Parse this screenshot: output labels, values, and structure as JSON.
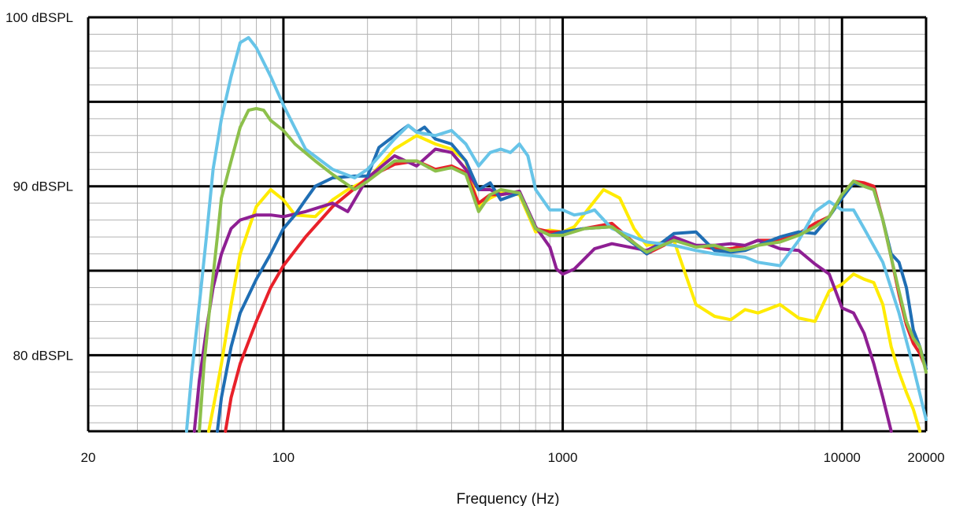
{
  "chart_data": {
    "type": "line",
    "title": "",
    "xlabel": "Frequency (Hz)",
    "ylabel": "",
    "x_scale": "log",
    "xlim": [
      20,
      20000
    ],
    "ylim": [
      75.5,
      100
    ],
    "grid": true,
    "x_ticks": [
      {
        "value": 20,
        "label": "20"
      },
      {
        "value": 100,
        "label": "100"
      },
      {
        "value": 1000,
        "label": "1000"
      },
      {
        "value": 10000,
        "label": "10000"
      },
      {
        "value": 20000,
        "label": "20000"
      }
    ],
    "y_ticks": [
      {
        "value": 80,
        "label": "80 dBSPL"
      },
      {
        "value": 90,
        "label": "90 dBSPL"
      },
      {
        "value": 100,
        "label": "100 dBSPL"
      }
    ],
    "series": [
      {
        "color": "#d4a017",
        "x": [],
        "y": []
      },
      {
        "color": "#ffeb00",
        "x": [
          54,
          57,
          60,
          65,
          70,
          80,
          90,
          100,
          110,
          130,
          150,
          170,
          200,
          250,
          300,
          350,
          400,
          450,
          500,
          550,
          600,
          700,
          800,
          900,
          1000,
          1100,
          1200,
          1400,
          1600,
          1800,
          2000,
          2500,
          3000,
          3500,
          4000,
          4500,
          5000,
          6000,
          7000,
          8000,
          9000,
          10000,
          11000,
          12000,
          13000,
          14000,
          15000,
          16000,
          17000,
          18000,
          19000
        ],
        "y": [
          75.5,
          77.5,
          79.5,
          83,
          86,
          88.8,
          89.8,
          89.2,
          88.3,
          88.2,
          89.2,
          89.8,
          90.4,
          92.2,
          93,
          92.5,
          92.2,
          91.5,
          88.8,
          89.3,
          89.6,
          89.5,
          87.3,
          87.4,
          87.3,
          87.6,
          88.4,
          89.8,
          89.3,
          87.5,
          86.5,
          86.8,
          83,
          82.3,
          82.1,
          82.7,
          82.5,
          83,
          82.2,
          82,
          83.8,
          84.2,
          84.8,
          84.5,
          84.3,
          83,
          80.5,
          79,
          77.8,
          76.8,
          75.5
        ]
      },
      {
        "color": "#e8212a",
        "x": [
          62,
          65,
          70,
          80,
          90,
          100,
          120,
          150,
          200,
          250,
          300,
          350,
          400,
          450,
          500,
          550,
          600,
          700,
          800,
          900,
          1000,
          1200,
          1500,
          2000,
          2500,
          3000,
          3500,
          4000,
          4500,
          5000,
          6000,
          7000,
          8000,
          9000,
          10000,
          11000,
          12000,
          13000,
          14000,
          15000,
          16000,
          17000,
          18000,
          19000,
          20000
        ],
        "y": [
          75.5,
          77.5,
          79.5,
          82,
          84,
          85.3,
          87,
          88.8,
          90.5,
          91.3,
          91.5,
          91,
          91.2,
          90.8,
          89,
          89.5,
          89.5,
          89.7,
          87.5,
          87.3,
          87.3,
          87.5,
          87.8,
          86,
          86.8,
          86.5,
          86.3,
          86.3,
          86.5,
          86.8,
          86.8,
          87.2,
          87.8,
          88.2,
          89.5,
          90.3,
          90.2,
          90,
          88,
          85.8,
          83.6,
          81.8,
          80.7,
          80.1,
          79.2
        ]
      },
      {
        "color": "#8e1f93",
        "x": [
          48,
          50,
          53,
          56,
          60,
          65,
          70,
          80,
          90,
          100,
          120,
          150,
          170,
          200,
          250,
          300,
          350,
          400,
          450,
          500,
          550,
          600,
          700,
          800,
          900,
          950,
          1000,
          1100,
          1300,
          1500,
          2000,
          2500,
          3000,
          3500,
          4000,
          4500,
          5000,
          6000,
          7000,
          8000,
          9000,
          10000,
          11000,
          12000,
          13000,
          14000,
          15000
        ],
        "y": [
          75.5,
          78.5,
          81.5,
          84,
          86,
          87.5,
          88,
          88.3,
          88.3,
          88.2,
          88.5,
          89,
          88.5,
          90.5,
          91.8,
          91.2,
          92.2,
          92,
          91,
          89.8,
          89.8,
          89.5,
          89.7,
          87.6,
          86.4,
          85.1,
          84.8,
          85.1,
          86.3,
          86.6,
          86.2,
          87.0,
          86.5,
          86.5,
          86.6,
          86.5,
          86.8,
          86.3,
          86.2,
          85.4,
          84.8,
          82.8,
          82.5,
          81.3,
          79.5,
          77.5,
          75.5
        ]
      },
      {
        "color": "#1f6eb4",
        "x": [
          58,
          60,
          65,
          70,
          80,
          90,
          100,
          110,
          120,
          130,
          150,
          180,
          200,
          220,
          250,
          280,
          300,
          320,
          350,
          400,
          450,
          500,
          550,
          600,
          700,
          800,
          900,
          1000,
          1200,
          1500,
          2000,
          2500,
          3000,
          3500,
          4000,
          4500,
          5000,
          6000,
          7000,
          8000,
          9000,
          10000,
          11000,
          12000,
          13000,
          14000,
          15000,
          16000,
          17000,
          18000,
          19000,
          20000
        ],
        "y": [
          75.5,
          77.5,
          80.5,
          82.5,
          84.5,
          86,
          87.5,
          88.3,
          89.2,
          90,
          90.5,
          90.6,
          90.6,
          92.3,
          93,
          93.6,
          93.2,
          93.5,
          92.8,
          92.5,
          91.5,
          89.8,
          90.2,
          89.2,
          89.6,
          87.5,
          87.1,
          87.3,
          87.5,
          87.6,
          86,
          87.2,
          87.3,
          86.2,
          86.1,
          86.2,
          86.5,
          87,
          87.3,
          87.2,
          88.2,
          89.3,
          90.2,
          90,
          89.8,
          88,
          86,
          85.5,
          84,
          81.5,
          80.5,
          79.2
        ]
      },
      {
        "color": "#67c4e8",
        "x": [
          45,
          47,
          50,
          53,
          56,
          60,
          65,
          70,
          75,
          80,
          90,
          100,
          120,
          150,
          180,
          200,
          250,
          280,
          300,
          350,
          400,
          450,
          500,
          550,
          600,
          650,
          700,
          750,
          800,
          900,
          1000,
          1100,
          1200,
          1300,
          1500,
          2000,
          2500,
          3000,
          3500,
          4000,
          4500,
          5000,
          6000,
          7000,
          8000,
          9000,
          10000,
          11000,
          12000,
          14000,
          16000,
          18000,
          20000
        ],
        "y": [
          75.5,
          79,
          83,
          87,
          91,
          94,
          96.5,
          98.5,
          98.8,
          98.2,
          96.5,
          94.8,
          92.2,
          91,
          90.5,
          91,
          92.8,
          93.6,
          93.2,
          93,
          93.3,
          92.5,
          91.2,
          92,
          92.2,
          92,
          92.5,
          91.8,
          89.8,
          88.6,
          88.6,
          88.3,
          88.4,
          88.6,
          87.5,
          86.7,
          86.5,
          86.2,
          86.0,
          85.9,
          85.8,
          85.5,
          85.3,
          86.8,
          88.5,
          89.1,
          88.6,
          88.6,
          87.5,
          85.5,
          82.5,
          79.3,
          76.2
        ]
      },
      {
        "color": "#8dc04b",
        "x": [
          50,
          52,
          55,
          58,
          60,
          65,
          70,
          75,
          80,
          85,
          90,
          100,
          110,
          130,
          150,
          180,
          200,
          250,
          300,
          350,
          400,
          450,
          500,
          550,
          600,
          700,
          800,
          900,
          1000,
          1200,
          1500,
          2000,
          2500,
          3000,
          3500,
          4000,
          4500,
          5000,
          6000,
          7000,
          8000,
          9000,
          10000,
          11000,
          12000,
          13000,
          14000,
          15000,
          16000,
          17000,
          18000,
          19000,
          20000
        ],
        "y": [
          75.5,
          79.5,
          83.5,
          87,
          89.3,
          91.5,
          93.5,
          94.5,
          94.6,
          94.5,
          93.9,
          93.3,
          92.5,
          91.5,
          90.7,
          89.8,
          90.3,
          91.5,
          91.5,
          90.9,
          91.1,
          90.7,
          88.5,
          89.5,
          89.8,
          89.6,
          87.5,
          87.1,
          87.1,
          87.5,
          87.6,
          86.1,
          86.8,
          86.4,
          86.5,
          86.2,
          86.3,
          86.5,
          86.7,
          87.1,
          87.6,
          88.2,
          89.5,
          90.3,
          90,
          89.8,
          88,
          85.8,
          83.8,
          82,
          81,
          80.5,
          79
        ]
      }
    ]
  }
}
